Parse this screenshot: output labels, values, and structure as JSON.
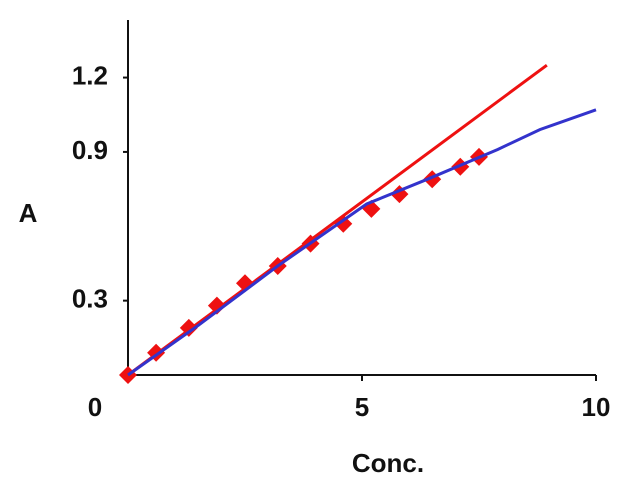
{
  "chart_data": {
    "type": "line",
    "xlabel": "Conc.",
    "ylabel": "A",
    "xlim": [
      0,
      10
    ],
    "xticks": [
      0,
      5,
      10
    ],
    "ylim": [
      0,
      1.4
    ],
    "yticks": [
      0.3,
      0.9,
      1.2
    ],
    "series": [
      {
        "color": "#ee1111",
        "marker": "diamond",
        "line": false,
        "x": [
          0,
          0.6,
          1.3,
          1.9,
          2.5,
          3.2,
          3.9,
          4.6,
          5.2,
          5.8,
          6.5,
          7.1,
          7.5
        ],
        "values": [
          0,
          0.09,
          0.19,
          0.28,
          0.37,
          0.44,
          0.53,
          0.61,
          0.67,
          0.73,
          0.79,
          0.84,
          0.88
        ]
      },
      {
        "color": "#ee1111",
        "marker": "none",
        "line": true,
        "x": [
          0,
          8.95
        ],
        "values": [
          0,
          1.25
        ]
      },
      {
        "color": "#3333cc",
        "marker": "none",
        "line": true,
        "x": [
          0,
          1.5,
          3.2,
          5.1,
          6.4,
          7.9,
          8.8,
          10
        ],
        "values": [
          0,
          0.2,
          0.44,
          0.69,
          0.79,
          0.91,
          0.99,
          1.07
        ]
      }
    ]
  }
}
